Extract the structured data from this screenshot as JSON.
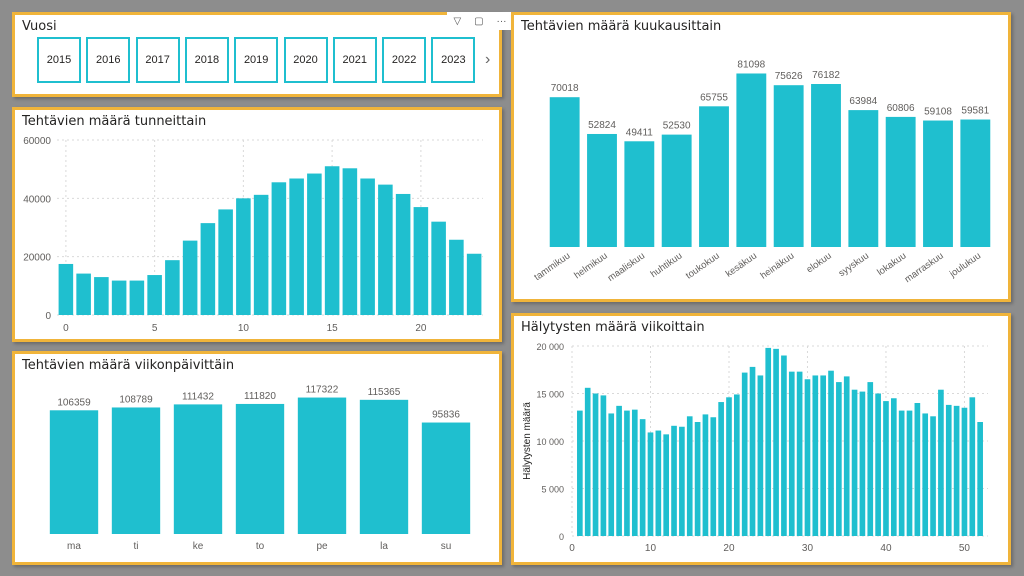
{
  "colors": {
    "bar": "#1fbfcf",
    "border": "#f0b43a",
    "grid": "#d9d9d9",
    "text": "#605e5c"
  },
  "slicer": {
    "title": "Vuosi",
    "years": [
      "2015",
      "2016",
      "2017",
      "2018",
      "2019",
      "2020",
      "2021",
      "2022",
      "2023"
    ],
    "icons": [
      "filter-icon",
      "focus-mode-icon",
      "more-options-icon"
    ]
  },
  "hourly": {
    "title": "Tehtävien määrä tunneittain",
    "chart_data": {
      "type": "bar",
      "x": [
        0,
        1,
        2,
        3,
        4,
        5,
        6,
        7,
        8,
        9,
        10,
        11,
        12,
        13,
        14,
        15,
        16,
        17,
        18,
        19,
        20,
        21,
        22,
        23
      ],
      "values": [
        17500,
        14200,
        13000,
        11800,
        11800,
        13700,
        18800,
        25500,
        31500,
        36200,
        40000,
        41200,
        45500,
        46800,
        48500,
        51000,
        50300,
        46800,
        44700,
        41500,
        37000,
        32000,
        25800,
        21000
      ],
      "xticks": [
        "0",
        "5",
        "10",
        "15",
        "20"
      ],
      "yticks": [
        "0",
        "20000",
        "40000",
        "60000"
      ],
      "ylim": [
        0,
        60000
      ]
    }
  },
  "weekday": {
    "title": "Tehtävien määrä viikonpäivittäin",
    "chart_data": {
      "type": "bar",
      "categories": [
        "ma",
        "ti",
        "ke",
        "to",
        "pe",
        "la",
        "su"
      ],
      "values": [
        106359,
        108789,
        111432,
        111820,
        117322,
        115365,
        95836
      ],
      "labels": [
        "106359",
        "108789",
        "111432",
        "111820",
        "117322",
        "115365",
        "95836"
      ]
    }
  },
  "monthly": {
    "title": "Tehtävien määrä kuukausittain",
    "chart_data": {
      "type": "bar",
      "categories": [
        "tammikuu",
        "helmikuu",
        "maaliskuu",
        "huhtikuu",
        "toukokuu",
        "kesäkuu",
        "heinäkuu",
        "elokuu",
        "syyskuu",
        "lokakuu",
        "marraskuu",
        "joulukuu"
      ],
      "values": [
        70018,
        52824,
        49411,
        52530,
        65755,
        81098,
        75626,
        76182,
        63984,
        60806,
        59108,
        59581
      ],
      "labels": [
        "70018",
        "52824",
        "49411",
        "52530",
        "65755",
        "81098",
        "75626",
        "76182",
        "63984",
        "60806",
        "59108",
        "59581"
      ]
    }
  },
  "weekly": {
    "title": "Hälytysten määrä viikoittain",
    "chart_data": {
      "type": "bar",
      "ylabel": "Hälytysten määrä",
      "x": [
        1,
        2,
        3,
        4,
        5,
        6,
        7,
        8,
        9,
        10,
        11,
        12,
        13,
        14,
        15,
        16,
        17,
        18,
        19,
        20,
        21,
        22,
        23,
        24,
        25,
        26,
        27,
        28,
        29,
        30,
        31,
        32,
        33,
        34,
        35,
        36,
        37,
        38,
        39,
        40,
        41,
        42,
        43,
        44,
        45,
        46,
        47,
        48,
        49,
        50,
        51,
        52
      ],
      "values": [
        13200,
        15600,
        15000,
        14800,
        12900,
        13700,
        13200,
        13300,
        12300,
        10900,
        11100,
        10700,
        11600,
        11500,
        12600,
        12000,
        12800,
        12500,
        14100,
        14600,
        14900,
        17200,
        17800,
        16900,
        19800,
        19700,
        19000,
        17300,
        17300,
        16500,
        16900,
        16900,
        17400,
        16200,
        16800,
        15400,
        15200,
        16200,
        15000,
        14200,
        14500,
        13200,
        13200,
        14000,
        12900,
        12600,
        15400,
        13800,
        13700,
        13500,
        14600,
        12000
      ],
      "xticks": [
        "0",
        "10",
        "20",
        "30",
        "40",
        "50"
      ],
      "yticks": [
        "0",
        "5 000",
        "10 000",
        "15 000",
        "20 000"
      ],
      "ylim": [
        0,
        20000
      ]
    }
  }
}
